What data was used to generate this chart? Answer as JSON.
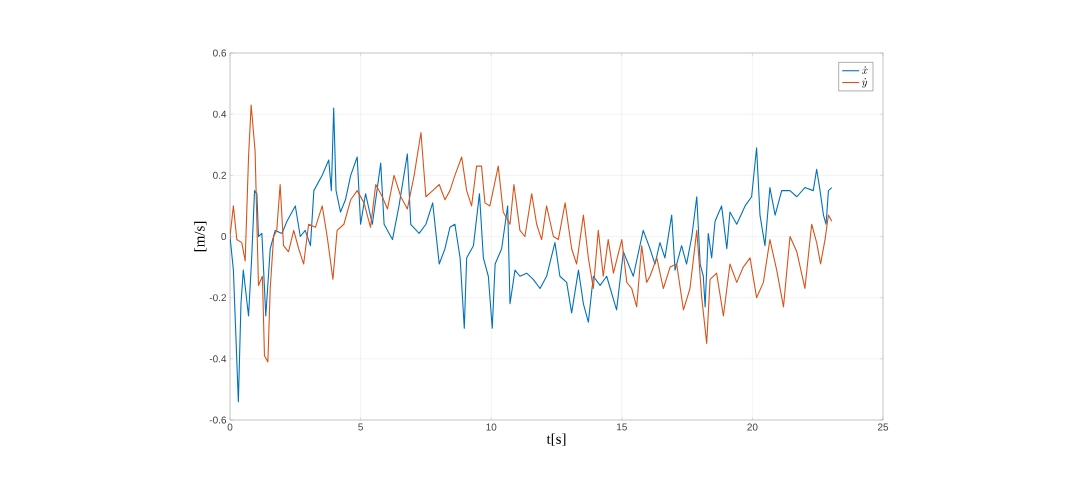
{
  "chart_data": {
    "type": "line",
    "xlabel": "t[s]",
    "ylabel": "[m/s]",
    "xlim": [
      0,
      25
    ],
    "ylim": [
      -0.6,
      0.6
    ],
    "xticks": [
      0,
      5,
      10,
      15,
      20,
      25
    ],
    "yticks": [
      -0.6,
      -0.4,
      -0.2,
      0,
      0.2,
      0.4,
      0.6
    ],
    "grid": true,
    "legend": "top right",
    "series": [
      {
        "name": "\\dot{x}",
        "color": "#0072bd",
        "x": [
          0,
          0.13,
          0.32,
          0.42,
          0.51,
          0.71,
          0.83,
          0.94,
          1.03,
          1.09,
          1.22,
          1.37,
          1.54,
          1.73,
          1.99,
          2.18,
          2.5,
          2.69,
          2.88,
          3.08,
          3.21,
          3.53,
          3.78,
          3.88,
          3.97,
          4.06,
          4.23,
          4.42,
          4.62,
          4.87,
          5.0,
          5.19,
          5.45,
          5.77,
          5.9,
          6.22,
          6.47,
          6.79,
          6.92,
          7.24,
          7.5,
          7.76,
          8.01,
          8.23,
          8.42,
          8.61,
          8.81,
          8.97,
          9.06,
          9.32,
          9.55,
          9.7,
          9.89,
          10.04,
          10.15,
          10.4,
          10.63,
          10.72,
          10.91,
          11.1,
          11.36,
          11.61,
          11.87,
          12.12,
          12.44,
          12.63,
          12.89,
          13.08,
          13.34,
          13.53,
          13.72,
          13.91,
          14.17,
          14.42,
          14.8,
          15.06,
          15.44,
          15.82,
          16.08,
          16.27,
          16.46,
          16.65,
          16.91,
          17.04,
          17.29,
          17.48,
          17.68,
          17.87,
          18.0,
          18.12,
          18.19,
          18.31,
          18.44,
          18.57,
          18.82,
          19.02,
          19.14,
          19.4,
          19.72,
          19.97,
          20.16,
          20.29,
          20.48,
          20.67,
          20.87,
          21.12,
          21.44,
          21.7,
          22.01,
          22.33,
          22.46,
          22.59,
          22.72,
          22.82,
          22.91,
          23.04
        ],
        "values": [
          0,
          -0.11,
          -0.54,
          -0.22,
          -0.11,
          -0.26,
          -0.07,
          0.15,
          0.14,
          0,
          0.01,
          -0.26,
          -0.04,
          0.02,
          0.01,
          0.05,
          0.1,
          0,
          0.02,
          -0.03,
          0.15,
          0.2,
          0.25,
          0.15,
          0.42,
          0.15,
          0.08,
          0.12,
          0.2,
          0.26,
          0.04,
          0.14,
          0.04,
          0.24,
          0.04,
          -0.01,
          0.1,
          0.27,
          0.04,
          0.01,
          0.04,
          0.11,
          -0.09,
          -0.04,
          0.03,
          0.04,
          -0.07,
          -0.3,
          -0.07,
          -0.03,
          0.14,
          -0.07,
          -0.13,
          -0.3,
          -0.09,
          -0.04,
          0.1,
          -0.22,
          -0.11,
          -0.13,
          -0.12,
          -0.14,
          -0.17,
          -0.13,
          -0.02,
          -0.13,
          -0.15,
          -0.25,
          -0.11,
          -0.22,
          -0.28,
          -0.13,
          -0.16,
          -0.13,
          -0.24,
          -0.05,
          -0.13,
          0.02,
          -0.04,
          -0.09,
          -0.02,
          -0.07,
          0.07,
          -0.11,
          -0.03,
          -0.09,
          0,
          0.13,
          -0.09,
          -0.13,
          -0.23,
          0.01,
          -0.07,
          0.05,
          0.1,
          -0.04,
          0.08,
          0.04,
          0.1,
          0.13,
          0.29,
          0.07,
          -0.03,
          0.16,
          0.07,
          0.15,
          0.15,
          0.13,
          0.16,
          0.15,
          0.22,
          0.15,
          0.07,
          0.04,
          0.15,
          0.16
        ]
      },
      {
        "name": "\\dot{y}",
        "color": "#d95319",
        "x": [
          0,
          0.13,
          0.26,
          0.45,
          0.58,
          0.71,
          0.81,
          0.96,
          1.09,
          1.24,
          1.32,
          1.45,
          1.54,
          1.67,
          1.79,
          1.92,
          2.05,
          2.24,
          2.44,
          2.63,
          2.82,
          3.01,
          3.27,
          3.53,
          3.72,
          3.94,
          4.1,
          4.36,
          4.62,
          4.87,
          5.13,
          5.38,
          5.58,
          5.83,
          6.03,
          6.28,
          6.54,
          6.79,
          7.05,
          7.31,
          7.5,
          7.76,
          8.01,
          8.23,
          8.42,
          8.61,
          8.87,
          9.06,
          9.25,
          9.44,
          9.63,
          9.76,
          9.95,
          10.27,
          10.46,
          10.72,
          10.87,
          11.1,
          11.29,
          11.55,
          11.74,
          11.93,
          12.12,
          12.38,
          12.57,
          12.83,
          13.08,
          13.27,
          13.53,
          13.72,
          13.91,
          14.1,
          14.29,
          14.48,
          14.68,
          15.0,
          15.19,
          15.38,
          15.57,
          15.76,
          15.95,
          16.08,
          16.34,
          16.59,
          16.85,
          17.1,
          17.36,
          17.61,
          17.87,
          18.06,
          18.25,
          18.38,
          18.63,
          18.89,
          19.14,
          19.4,
          19.65,
          19.91,
          20.16,
          20.42,
          20.67,
          20.93,
          21.19,
          21.44,
          21.7,
          22.01,
          22.27,
          22.46,
          22.61,
          22.78,
          22.91,
          23.04
        ],
        "values": [
          0,
          0.1,
          -0.01,
          -0.02,
          -0.08,
          0.26,
          0.43,
          0.28,
          -0.16,
          -0.13,
          -0.39,
          -0.41,
          -0.17,
          0,
          0.02,
          0.17,
          -0.03,
          -0.05,
          0.02,
          -0.04,
          -0.09,
          0.04,
          0.03,
          0.1,
          0,
          -0.14,
          0.02,
          0.04,
          0.12,
          0.15,
          0.11,
          0.03,
          0.17,
          0.13,
          0.09,
          0.2,
          0.13,
          0.09,
          0.2,
          0.34,
          0.13,
          0.15,
          0.17,
          0.12,
          0.15,
          0.2,
          0.26,
          0.15,
          0.1,
          0.23,
          0.23,
          0.11,
          0.1,
          0.23,
          0.08,
          0.04,
          0.17,
          0.02,
          0,
          0.14,
          0.04,
          -0.01,
          0.1,
          0,
          -0.01,
          0.11,
          -0.04,
          -0.09,
          0.07,
          -0.07,
          -0.17,
          0.02,
          -0.13,
          -0.01,
          -0.12,
          -0.01,
          -0.15,
          -0.17,
          -0.23,
          -0.03,
          -0.15,
          -0.13,
          -0.07,
          -0.17,
          -0.1,
          -0.09,
          -0.24,
          -0.17,
          0.02,
          -0.2,
          -0.35,
          -0.14,
          -0.12,
          -0.26,
          -0.09,
          -0.15,
          -0.1,
          -0.07,
          -0.2,
          -0.15,
          -0.01,
          -0.11,
          -0.23,
          0,
          -0.05,
          -0.17,
          0.04,
          -0.02,
          -0.09,
          -0.01,
          0.07,
          0.05
        ]
      }
    ]
  }
}
